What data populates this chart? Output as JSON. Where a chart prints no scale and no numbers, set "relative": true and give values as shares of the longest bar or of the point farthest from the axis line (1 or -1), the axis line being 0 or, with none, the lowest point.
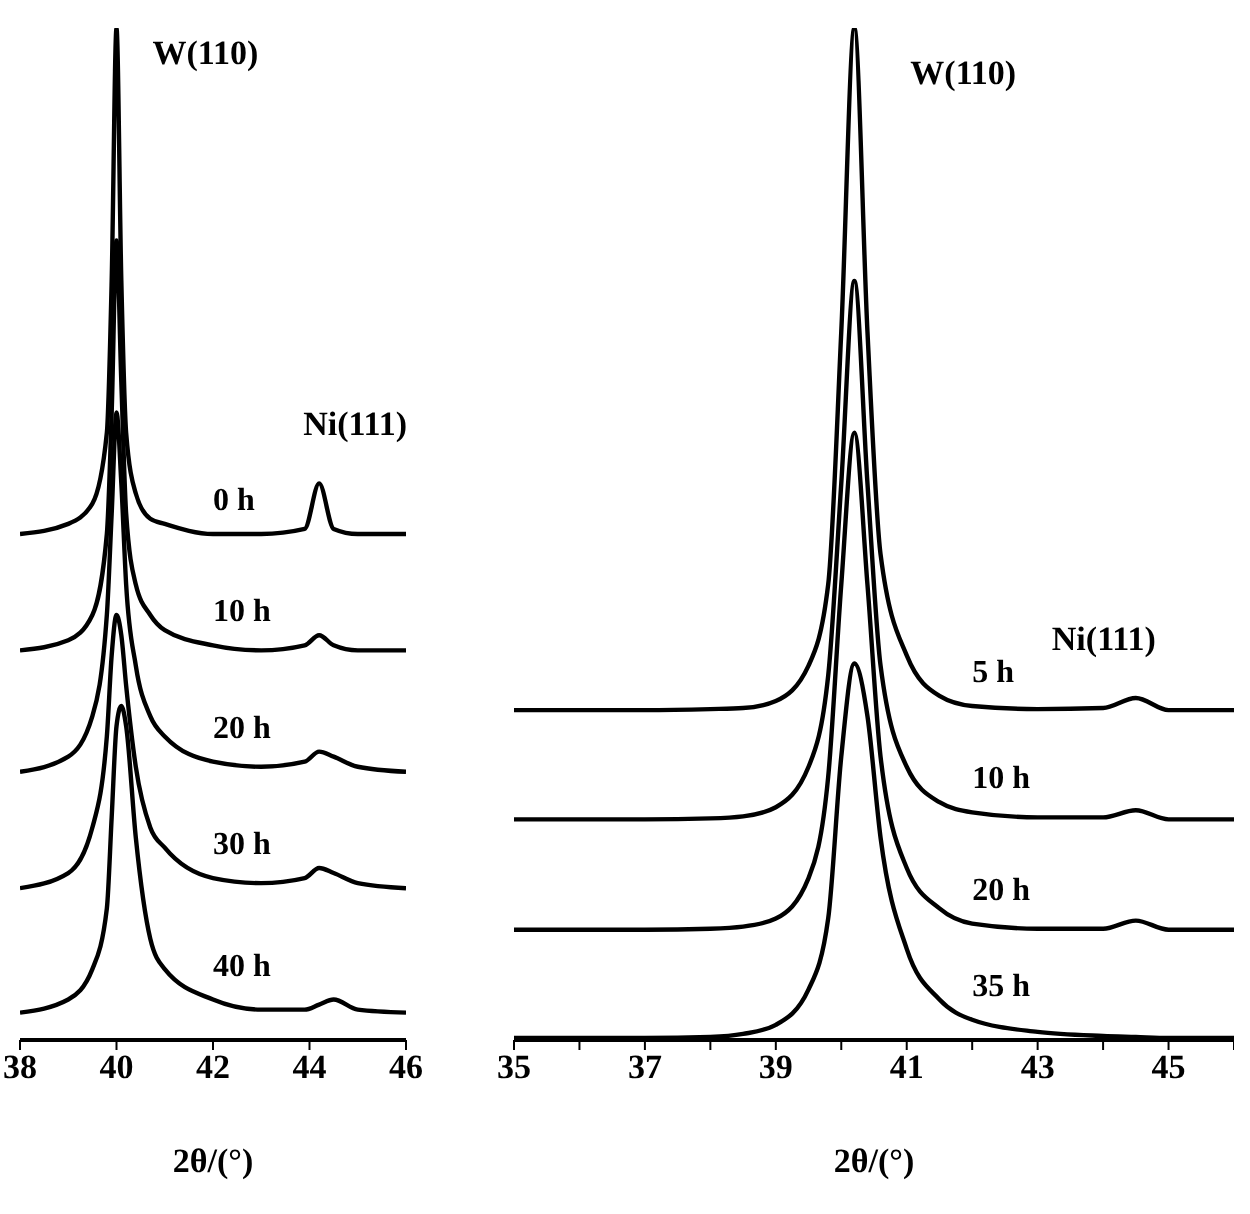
{
  "chart_data": [
    {
      "type": "line",
      "relative": true,
      "xlabel": "2θ/(°)",
      "xlim": [
        38,
        46
      ],
      "xticks": [
        38,
        40,
        42,
        44,
        46
      ],
      "marker": "none",
      "line_style": "solid",
      "legend": false,
      "grid": false,
      "x": [
        38,
        39,
        39.5,
        39.8,
        39.9,
        40.0,
        40.1,
        40.2,
        40.4,
        40.7,
        41,
        42,
        43,
        43.9,
        44.2,
        44.5,
        45,
        46
      ],
      "series": [
        {
          "name": "0 h",
          "color": "#000000",
          "values": [
            0.5,
            0.51,
            0.53,
            0.6,
            0.75,
            1.0,
            0.75,
            0.6,
            0.54,
            0.515,
            0.51,
            0.5,
            0.5,
            0.505,
            0.55,
            0.505,
            0.5,
            0.5
          ]
        },
        {
          "name": "10 h",
          "color": "#000000",
          "values": [
            0.385,
            0.395,
            0.42,
            0.5,
            0.62,
            0.79,
            0.65,
            0.52,
            0.45,
            0.42,
            0.405,
            0.39,
            0.385,
            0.39,
            0.4,
            0.39,
            0.385,
            0.385
          ]
        },
        {
          "name": "20 h",
          "color": "#000000",
          "values": [
            0.265,
            0.28,
            0.32,
            0.42,
            0.52,
            0.62,
            0.55,
            0.45,
            0.37,
            0.32,
            0.3,
            0.275,
            0.27,
            0.275,
            0.285,
            0.28,
            0.27,
            0.265
          ]
        },
        {
          "name": "30 h",
          "color": "#000000",
          "values": [
            0.15,
            0.165,
            0.21,
            0.3,
            0.38,
            0.42,
            0.4,
            0.35,
            0.27,
            0.21,
            0.19,
            0.16,
            0.155,
            0.16,
            0.17,
            0.165,
            0.155,
            0.15
          ]
        },
        {
          "name": "40 h",
          "color": "#000000",
          "values": [
            0.027,
            0.04,
            0.07,
            0.13,
            0.22,
            0.31,
            0.33,
            0.31,
            0.2,
            0.1,
            0.07,
            0.04,
            0.03,
            0.03,
            0.035,
            0.04,
            0.03,
            0.027
          ]
        }
      ],
      "annotations": [
        {
          "text": "W(110)",
          "x": 40,
          "y": 1.0
        },
        {
          "text": "Ni(111)",
          "x": 44.2,
          "y": 0.55
        }
      ]
    },
    {
      "type": "line",
      "relative": true,
      "xlabel": "2θ/(°)",
      "xlim": [
        35,
        46
      ],
      "xticks": [
        35,
        {
          "value": 36,
          "label": null
        },
        37,
        {
          "value": 38,
          "label": null
        },
        39,
        {
          "value": 40,
          "label": null
        },
        41,
        {
          "value": 42,
          "label": null
        },
        43,
        {
          "value": 44,
          "label": null
        },
        45,
        {
          "value": 46,
          "label": null
        }
      ],
      "marker": "none",
      "line_style": "solid",
      "legend": false,
      "grid": false,
      "x": [
        35,
        37,
        38,
        38.5,
        39,
        39.5,
        39.8,
        40,
        40.2,
        40.4,
        40.6,
        41,
        41.5,
        42,
        43,
        44,
        44.5,
        45,
        46
      ],
      "series": [
        {
          "name": "5 h",
          "color": "#000000",
          "values": [
            0.326,
            0.326,
            0.327,
            0.328,
            0.335,
            0.37,
            0.45,
            0.7,
            1.0,
            0.7,
            0.48,
            0.38,
            0.34,
            0.33,
            0.327,
            0.328,
            0.338,
            0.326,
            0.326
          ]
        },
        {
          "name": "10 h",
          "color": "#000000",
          "values": [
            0.218,
            0.218,
            0.219,
            0.221,
            0.23,
            0.27,
            0.36,
            0.55,
            0.75,
            0.55,
            0.37,
            0.27,
            0.235,
            0.225,
            0.22,
            0.22,
            0.227,
            0.218,
            0.218
          ]
        },
        {
          "name": "20 h",
          "color": "#000000",
          "values": [
            0.109,
            0.109,
            0.11,
            0.112,
            0.12,
            0.16,
            0.26,
            0.45,
            0.6,
            0.45,
            0.28,
            0.17,
            0.13,
            0.115,
            0.11,
            0.11,
            0.118,
            0.109,
            0.109
          ]
        },
        {
          "name": "35 h",
          "color": "#000000",
          "values": [
            0.002,
            0.002,
            0.003,
            0.006,
            0.015,
            0.05,
            0.12,
            0.28,
            0.372,
            0.32,
            0.2,
            0.09,
            0.04,
            0.02,
            0.008,
            0.004,
            0.003,
            0.002,
            0.002
          ]
        }
      ],
      "annotations": [
        {
          "text": "W(110)",
          "x": 40.2,
          "y": 1.0
        },
        {
          "text": "Ni(111)",
          "x": 44.5,
          "y": 0.338
        }
      ]
    }
  ]
}
